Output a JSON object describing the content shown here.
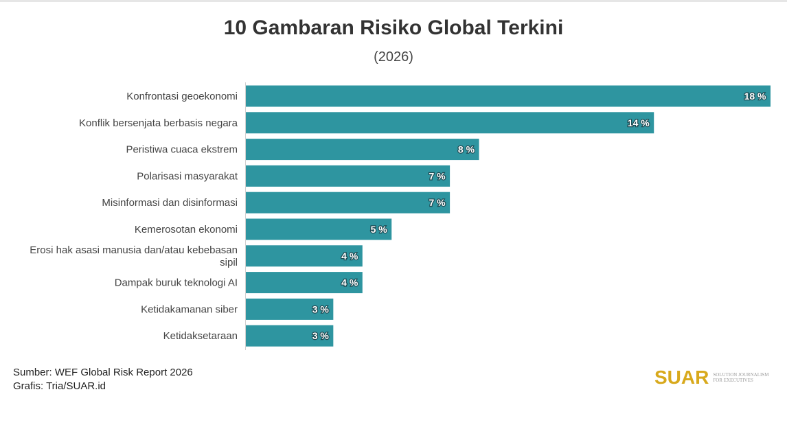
{
  "title": "10 Gambaran Risiko Global Terkini",
  "subtitle": "(2026)",
  "footer": {
    "source": "Sumber: WEF Global Risk Report 2026",
    "credit": "Grafis: Tria/SUAR.id"
  },
  "logo": {
    "mark": "SUAR",
    "tagline_1": "SOLUTION JOURNALISM",
    "tagline_2": "for EXECUTIVES"
  },
  "colors": {
    "bar": "#2e95a0",
    "value_label_outline": "#1f4a52",
    "brand": "#d8a91c"
  },
  "chart_data": {
    "type": "bar",
    "orientation": "horizontal",
    "title": "10 Gambaran Risiko Global Terkini",
    "subtitle": "(2026)",
    "categories": [
      "Konfrontasi geoekonomi",
      "Konflik bersenjata berbasis negara",
      "Peristiwa cuaca ekstrem",
      "Polarisasi masyarakat",
      "Misinformasi dan disinformasi",
      "Kemerosotan ekonomi",
      "Erosi hak asasi manusia dan/atau kebebasan sipil",
      "Dampak buruk teknologi AI",
      "Ketidakamanan siber",
      "Ketidaksetaraan"
    ],
    "category_lines": [
      [
        "Konfrontasi geoekonomi"
      ],
      [
        "Konflik bersenjata berbasis negara"
      ],
      [
        "Peristiwa cuaca ekstrem"
      ],
      [
        "Polarisasi masyarakat"
      ],
      [
        "Misinformasi dan disinformasi"
      ],
      [
        "Kemerosotan ekonomi"
      ],
      [
        "Erosi hak asasi manusia dan/atau kebebasan",
        "sipil"
      ],
      [
        "Dampak buruk teknologi AI"
      ],
      [
        "Ketidakamanan siber"
      ],
      [
        "Ketidaksetaraan"
      ]
    ],
    "values": [
      18,
      14,
      8,
      7,
      7,
      5,
      4,
      4,
      3,
      3
    ],
    "value_labels": [
      "18 %",
      "14 %",
      "8 %",
      "7 %",
      "7 %",
      "5 %",
      "4 %",
      "4 %",
      "3 %",
      "3 %"
    ],
    "unit": "%",
    "xlim": [
      0,
      18
    ],
    "xlabel": "",
    "ylabel": "",
    "grid": false,
    "legend": false
  }
}
